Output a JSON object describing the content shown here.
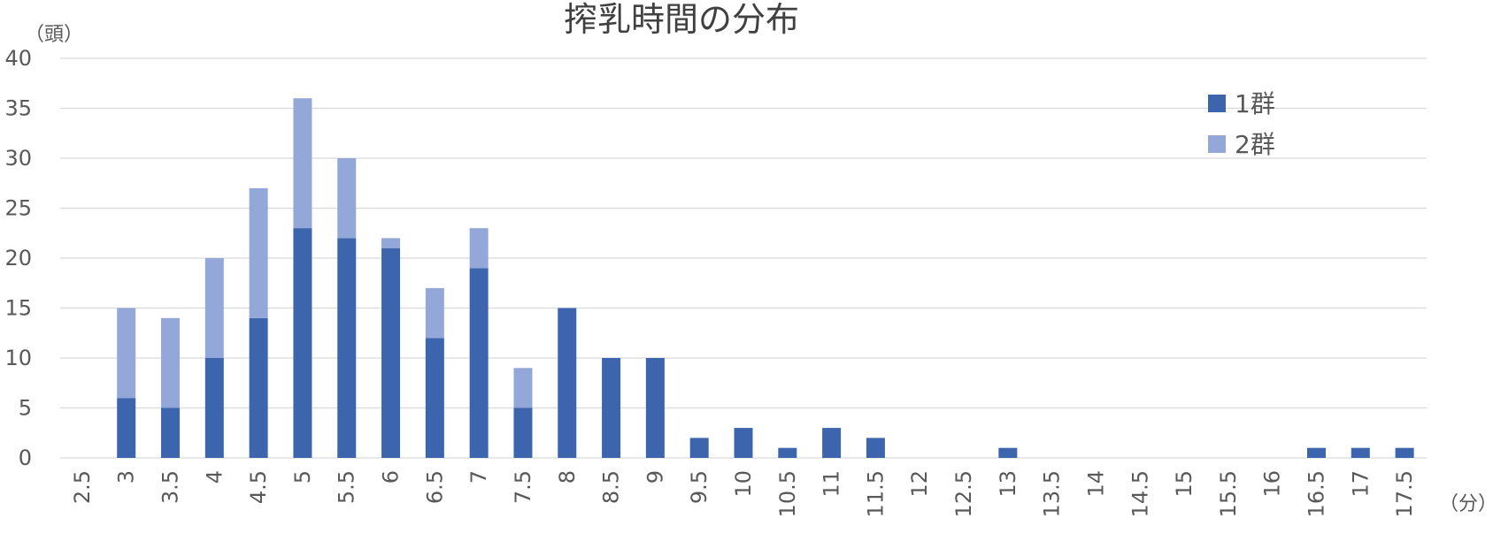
{
  "chart_data": {
    "type": "bar",
    "stacked": true,
    "title": "搾乳時間の分布",
    "ylabel": "（頭）",
    "xlabel": "（分）",
    "ylim": [
      0,
      40
    ],
    "yticks": [
      0,
      5,
      10,
      15,
      20,
      25,
      30,
      35,
      40
    ],
    "grid": true,
    "legend_position": "top-right",
    "categories": [
      "2.5",
      "3",
      "3.5",
      "4",
      "4.5",
      "5",
      "5.5",
      "6",
      "6.5",
      "7",
      "7.5",
      "8",
      "8.5",
      "9",
      "9.5",
      "10",
      "10.5",
      "11",
      "11.5",
      "12",
      "12.5",
      "13",
      "13.5",
      "14",
      "14.5",
      "15",
      "15.5",
      "16",
      "16.5",
      "17",
      "17.5"
    ],
    "series": [
      {
        "name": "1群",
        "color": "#3D65AE",
        "values": [
          0,
          6,
          5,
          10,
          14,
          23,
          22,
          21,
          12,
          19,
          5,
          15,
          10,
          10,
          2,
          3,
          1,
          3,
          2,
          0,
          0,
          1,
          0,
          0,
          0,
          0,
          0,
          0,
          1,
          1,
          1
        ]
      },
      {
        "name": "2群",
        "color": "#93A8D9",
        "values": [
          0,
          9,
          9,
          10,
          13,
          13,
          8,
          1,
          5,
          4,
          4,
          0,
          0,
          0,
          0,
          0,
          0,
          0,
          0,
          0,
          0,
          0,
          0,
          0,
          0,
          0,
          0,
          0,
          0,
          0,
          0
        ]
      }
    ]
  }
}
